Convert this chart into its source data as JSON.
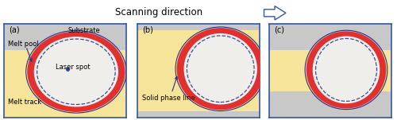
{
  "fig_width": 5.0,
  "fig_height": 1.51,
  "dpi": 100,
  "gray_bg": "#c8c8c8",
  "yellow_color": "#f5e49a",
  "white_inner": "#f0eeeb",
  "ring_red": "#e03030",
  "dashed_color": "#1a2f8a",
  "blue_outline": "#223388",
  "laser_spot_color": "#2244aa",
  "border_color": "#3355aa",
  "title": "Scanning direction",
  "panels": [
    "(a)",
    "(b)",
    "(c)"
  ],
  "label_substrate": "Substrate",
  "label_melt_pool": "Melt pool",
  "label_laser_spot": "Laser spot",
  "label_melt_track": "Melt track",
  "label_solid_phase": "Solid phase line",
  "title_fontsize": 8.5,
  "label_fontsize": 6.0,
  "panel_label_fontsize": 7.0
}
